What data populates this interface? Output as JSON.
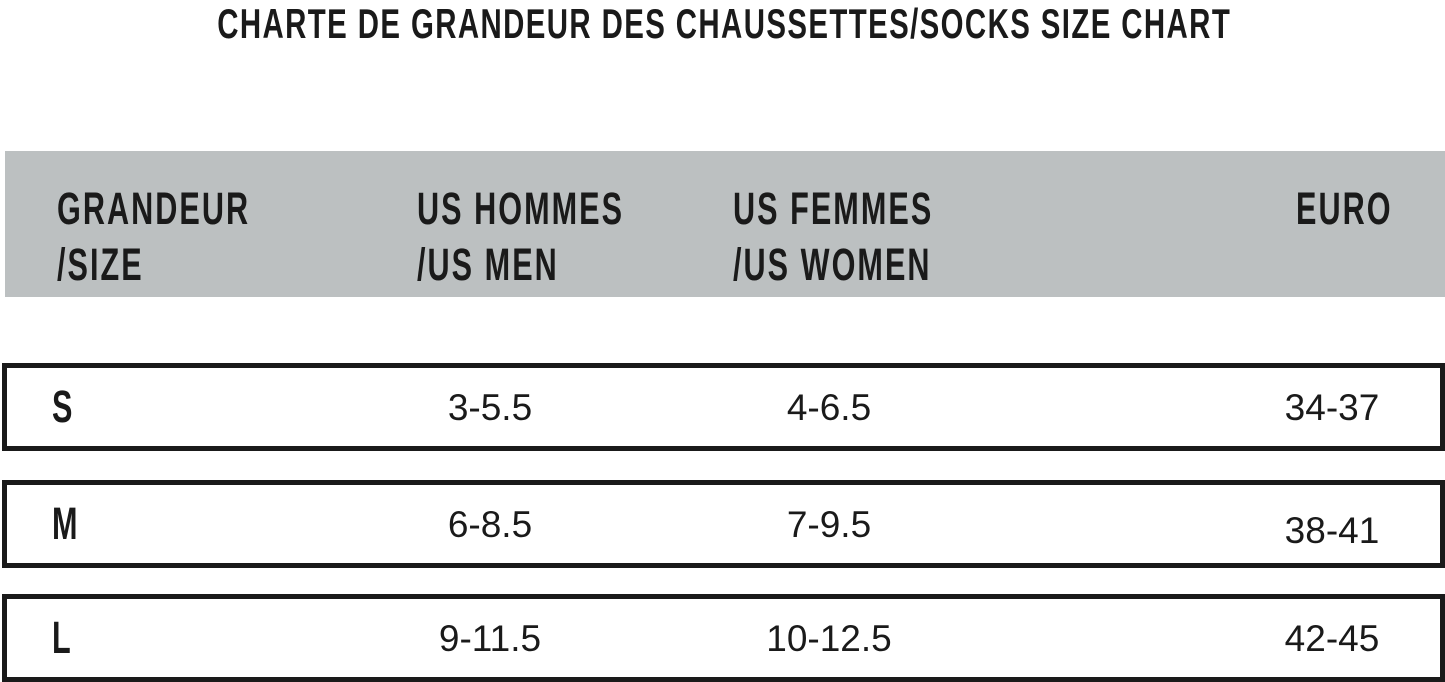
{
  "title": "CHARTE DE GRANDEUR DES CHAUSSETTES/SOCKS SIZE CHART",
  "colors": {
    "header_bg": "#bcc0c1",
    "text": "#1a1a1a",
    "border": "#1a1a1a"
  },
  "table": {
    "headers": [
      {
        "line1": "GRANDEUR",
        "line2": "/SIZE"
      },
      {
        "line1": "US HOMMES",
        "line2": "/US MEN"
      },
      {
        "line1": "US FEMMES",
        "line2": "/US WOMEN"
      },
      {
        "line1": "EURO",
        "line2": ""
      }
    ],
    "rows": [
      {
        "size": "S",
        "us_men": "3-5.5",
        "us_women": "4-6.5",
        "euro": "34-37"
      },
      {
        "size": "M",
        "us_men": "6-8.5",
        "us_women": "7-9.5",
        "euro": "38-41"
      },
      {
        "size": "L",
        "us_men": "9-11.5",
        "us_women": "10-12.5",
        "euro": "42-45"
      }
    ]
  }
}
